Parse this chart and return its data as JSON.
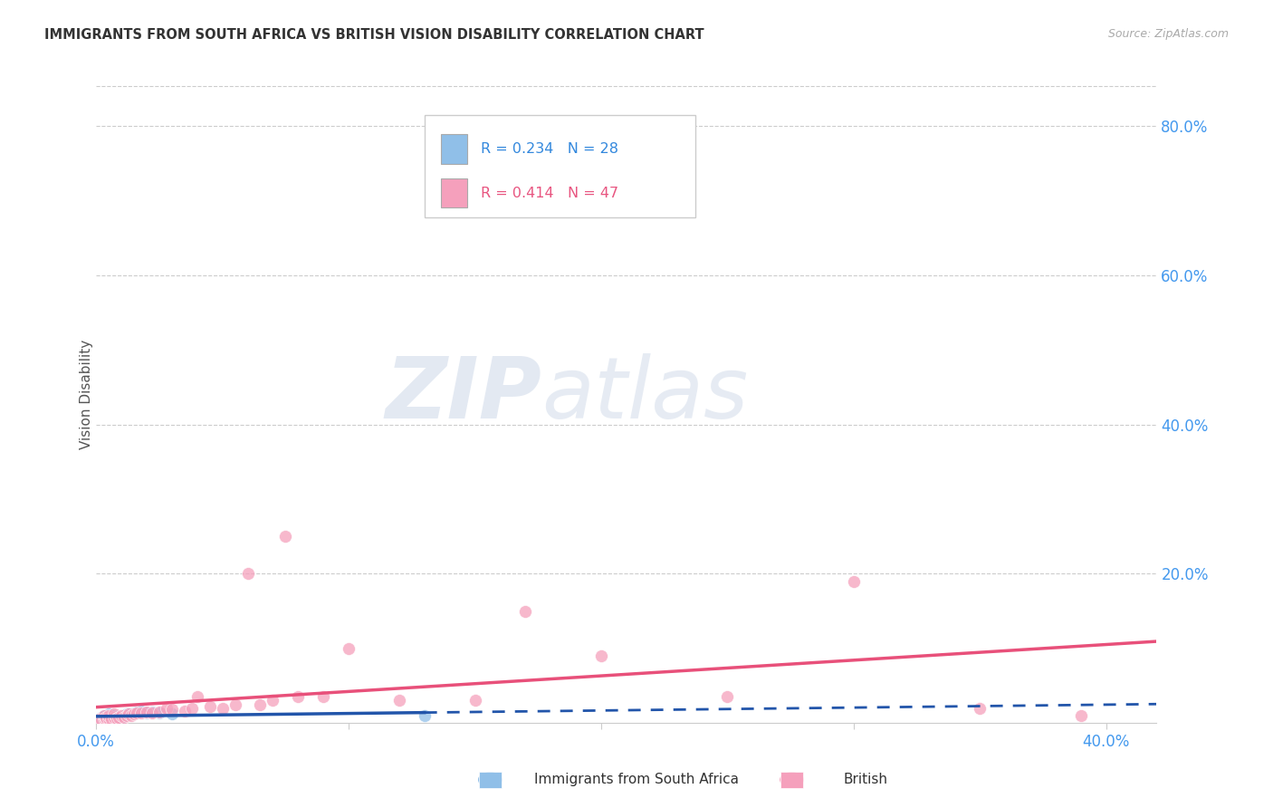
{
  "title": "IMMIGRANTS FROM SOUTH AFRICA VS BRITISH VISION DISABILITY CORRELATION CHART",
  "source": "Source: ZipAtlas.com",
  "ylabel": "Vision Disability",
  "xlim": [
    0.0,
    0.42
  ],
  "ylim": [
    0.0,
    0.88
  ],
  "xtick_positions": [
    0.0,
    0.1,
    0.2,
    0.3,
    0.4
  ],
  "xticklabels": [
    "0.0%",
    "",
    "",
    "",
    "40.0%"
  ],
  "ytick_values_right": [
    0.8,
    0.6,
    0.4,
    0.2
  ],
  "ytick_labels_right": [
    "80.0%",
    "60.0%",
    "40.0%",
    "20.0%"
  ],
  "grid_color": "#cccccc",
  "bg_color": "#ffffff",
  "legend_r1": "0.234",
  "legend_n1": "28",
  "legend_r2": "0.414",
  "legend_n2": "47",
  "blue_color": "#90bfe8",
  "pink_color": "#f5a0bc",
  "blue_line_color": "#2255aa",
  "pink_line_color": "#e8507a",
  "blue_scatter_x": [
    0.001,
    0.002,
    0.002,
    0.003,
    0.003,
    0.004,
    0.004,
    0.005,
    0.005,
    0.006,
    0.006,
    0.007,
    0.007,
    0.008,
    0.008,
    0.009,
    0.01,
    0.011,
    0.012,
    0.013,
    0.015,
    0.016,
    0.018,
    0.02,
    0.022,
    0.025,
    0.03,
    0.13
  ],
  "blue_scatter_y": [
    0.005,
    0.005,
    0.008,
    0.006,
    0.01,
    0.005,
    0.008,
    0.006,
    0.012,
    0.004,
    0.008,
    0.006,
    0.01,
    0.005,
    0.009,
    0.007,
    0.008,
    0.01,
    0.012,
    0.012,
    0.013,
    0.015,
    0.016,
    0.013,
    0.015,
    0.014,
    0.012,
    0.01
  ],
  "pink_scatter_x": [
    0.001,
    0.002,
    0.003,
    0.003,
    0.004,
    0.004,
    0.005,
    0.005,
    0.006,
    0.007,
    0.007,
    0.008,
    0.009,
    0.01,
    0.011,
    0.012,
    0.013,
    0.014,
    0.015,
    0.016,
    0.018,
    0.02,
    0.022,
    0.025,
    0.028,
    0.03,
    0.035,
    0.038,
    0.04,
    0.045,
    0.05,
    0.055,
    0.06,
    0.065,
    0.07,
    0.075,
    0.08,
    0.09,
    0.1,
    0.12,
    0.15,
    0.17,
    0.2,
    0.25,
    0.3,
    0.35,
    0.39
  ],
  "pink_scatter_y": [
    0.005,
    0.004,
    0.006,
    0.01,
    0.005,
    0.008,
    0.006,
    0.01,
    0.005,
    0.008,
    0.012,
    0.006,
    0.008,
    0.01,
    0.008,
    0.01,
    0.012,
    0.01,
    0.012,
    0.014,
    0.013,
    0.015,
    0.014,
    0.015,
    0.02,
    0.018,
    0.016,
    0.02,
    0.035,
    0.022,
    0.02,
    0.025,
    0.2,
    0.025,
    0.03,
    0.25,
    0.035,
    0.035,
    0.1,
    0.03,
    0.03,
    0.15,
    0.09,
    0.035,
    0.19,
    0.02,
    0.01
  ]
}
